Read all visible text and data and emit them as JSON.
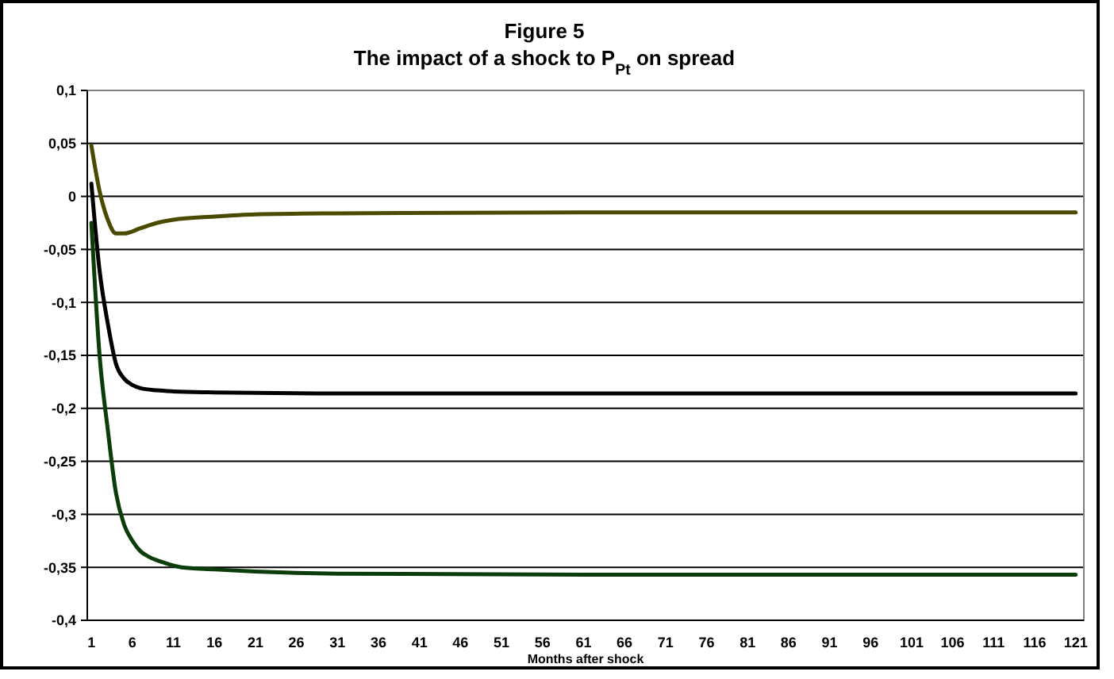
{
  "chart_data": {
    "type": "line",
    "title": "Figure 5",
    "subtitle": "The impact of a shock to P$_{Pt}$ on spread",
    "xlabel": "Months after shock",
    "xlim": [
      0.5,
      122
    ],
    "xticks": [
      1,
      6,
      11,
      16,
      21,
      26,
      31,
      36,
      41,
      46,
      51,
      56,
      61,
      66,
      71,
      76,
      81,
      86,
      91,
      96,
      101,
      106,
      111,
      116,
      121
    ],
    "ylim": [
      -0.4,
      0.1
    ],
    "yticks": [
      {
        "value": 0.1,
        "label": "0,1"
      },
      {
        "value": 0.05,
        "label": "0,05"
      },
      0,
      {
        "value": -0.05,
        "label": "-0,05"
      },
      {
        "value": -0.1,
        "label": "-0,1"
      },
      {
        "value": -0.15,
        "label": "-0,15"
      },
      {
        "value": -0.2,
        "label": "-0,2"
      },
      {
        "value": -0.25,
        "label": "-0,25"
      },
      {
        "value": -0.3,
        "label": "-0,3"
      },
      {
        "value": -0.35,
        "label": "-0,35"
      },
      {
        "value": -0.4,
        "label": "-0,4"
      }
    ],
    "grid": "y",
    "marker": "none",
    "line_style": "solid",
    "series": [
      {
        "color": "#4a4a00",
        "x": [
          1,
          2,
          3,
          4,
          5,
          7,
          9,
          11,
          16,
          21,
          31,
          61,
          91,
          121
        ],
        "values": [
          0.048,
          0.005,
          -0.022,
          -0.035,
          -0.035,
          -0.03,
          -0.025,
          -0.022,
          -0.019,
          -0.017,
          -0.016,
          -0.015,
          -0.015,
          -0.015
        ]
      },
      {
        "color": "#000000",
        "x": [
          1,
          2,
          3,
          4,
          5,
          6,
          7,
          9,
          11,
          16,
          31,
          61,
          91,
          121
        ],
        "values": [
          0.012,
          -0.07,
          -0.12,
          -0.158,
          -0.172,
          -0.178,
          -0.181,
          -0.183,
          -0.184,
          -0.185,
          -0.186,
          -0.186,
          -0.186,
          -0.186
        ]
      },
      {
        "color": "#0b3d0b",
        "x": [
          1,
          2,
          3,
          4,
          5,
          6,
          7,
          8,
          10,
          12,
          16,
          21,
          31,
          61,
          91,
          121
        ],
        "values": [
          -0.025,
          -0.15,
          -0.22,
          -0.28,
          -0.31,
          -0.325,
          -0.335,
          -0.34,
          -0.346,
          -0.35,
          -0.352,
          -0.354,
          -0.356,
          -0.357,
          -0.357,
          -0.357
        ]
      }
    ]
  }
}
